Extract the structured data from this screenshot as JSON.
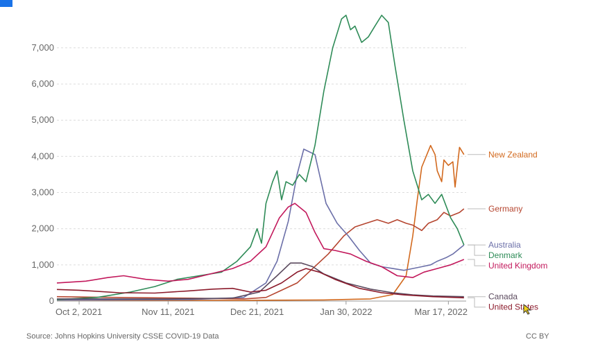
{
  "footer": {
    "source": "Source: Johns Hopkins University CSSE COVID-19 Data",
    "license": "CC BY"
  },
  "chart_data": {
    "type": "line",
    "title": "",
    "xlabel": "",
    "ylabel": "",
    "ylim": [
      0,
      7900
    ],
    "yticks": [
      0,
      1000,
      2000,
      3000,
      4000,
      5000,
      6000,
      7000
    ],
    "ytick_labels": [
      "0",
      "1,000",
      "2,000",
      "3,000",
      "4,000",
      "5,000",
      "6,000",
      "7,000"
    ],
    "x_domain": [
      "2021-09-22",
      "2022-03-25"
    ],
    "xticks": [
      "2021-10-02",
      "2021-11-11",
      "2021-12-21",
      "2022-01-30",
      "2022-03-17"
    ],
    "xtick_labels": [
      "Oct 2, 2021",
      "Nov 11, 2021",
      "Dec 21, 2021",
      "Jan 30, 2022",
      "Mar 17, 2022"
    ],
    "grid": "horizontal dashed",
    "legend": "right, end labels",
    "series": [
      {
        "name": "New Zealand",
        "color": "#d2691e",
        "label_value": 4050,
        "points": [
          [
            "2021-09-22",
            30
          ],
          [
            "2021-10-30",
            20
          ],
          [
            "2021-12-15",
            20
          ],
          [
            "2022-01-20",
            30
          ],
          [
            "2022-02-10",
            60
          ],
          [
            "2022-02-20",
            180
          ],
          [
            "2022-02-26",
            700
          ],
          [
            "2022-03-01",
            1800
          ],
          [
            "2022-03-03",
            2800
          ],
          [
            "2022-03-05",
            3700
          ],
          [
            "2022-03-08",
            4150
          ],
          [
            "2022-03-09",
            4300
          ],
          [
            "2022-03-11",
            4050
          ],
          [
            "2022-03-12",
            3600
          ],
          [
            "2022-03-14",
            3300
          ],
          [
            "2022-03-15",
            3900
          ],
          [
            "2022-03-17",
            3750
          ],
          [
            "2022-03-19",
            3850
          ],
          [
            "2022-03-20",
            3150
          ],
          [
            "2022-03-22",
            4250
          ],
          [
            "2022-03-24",
            4050
          ]
        ]
      },
      {
        "name": "Germany",
        "color": "#b5452f",
        "label_value": 2550,
        "points": [
          [
            "2021-09-22",
            120
          ],
          [
            "2021-10-20",
            100
          ],
          [
            "2021-11-20",
            80
          ],
          [
            "2021-12-15",
            60
          ],
          [
            "2021-12-25",
            100
          ],
          [
            "2022-01-01",
            300
          ],
          [
            "2022-01-08",
            500
          ],
          [
            "2022-01-15",
            900
          ],
          [
            "2022-01-22",
            1300
          ],
          [
            "2022-01-29",
            1800
          ],
          [
            "2022-02-03",
            2050
          ],
          [
            "2022-02-08",
            2150
          ],
          [
            "2022-02-13",
            2250
          ],
          [
            "2022-02-18",
            2150
          ],
          [
            "2022-02-22",
            2250
          ],
          [
            "2022-02-26",
            2150
          ],
          [
            "2022-03-01",
            2100
          ],
          [
            "2022-03-05",
            1950
          ],
          [
            "2022-03-08",
            2150
          ],
          [
            "2022-03-12",
            2250
          ],
          [
            "2022-03-15",
            2450
          ],
          [
            "2022-03-18",
            2350
          ],
          [
            "2022-03-22",
            2450
          ],
          [
            "2022-03-24",
            2550
          ]
        ]
      },
      {
        "name": "Australia",
        "color": "#6b6fa8",
        "label_value": 1550,
        "points": [
          [
            "2021-09-22",
            30
          ],
          [
            "2021-11-20",
            40
          ],
          [
            "2021-12-15",
            100
          ],
          [
            "2021-12-25",
            500
          ],
          [
            "2021-12-30",
            1100
          ],
          [
            "2022-01-04",
            2200
          ],
          [
            "2022-01-08",
            3500
          ],
          [
            "2022-01-11",
            4200
          ],
          [
            "2022-01-16",
            4050
          ],
          [
            "2022-01-21",
            2700
          ],
          [
            "2022-01-26",
            2150
          ],
          [
            "2022-01-31",
            1800
          ],
          [
            "2022-02-05",
            1400
          ],
          [
            "2022-02-10",
            1050
          ],
          [
            "2022-02-15",
            950
          ],
          [
            "2022-02-20",
            900
          ],
          [
            "2022-02-25",
            850
          ],
          [
            "2022-03-01",
            900
          ],
          [
            "2022-03-05",
            950
          ],
          [
            "2022-03-09",
            1000
          ],
          [
            "2022-03-12",
            1100
          ],
          [
            "2022-03-16",
            1200
          ],
          [
            "2022-03-19",
            1300
          ],
          [
            "2022-03-22",
            1450
          ],
          [
            "2022-03-24",
            1550
          ]
        ]
      },
      {
        "name": "Denmark",
        "color": "#2e8b57",
        "label_value": 1550,
        "points": [
          [
            "2021-09-22",
            40
          ],
          [
            "2021-10-10",
            100
          ],
          [
            "2021-10-25",
            250
          ],
          [
            "2021-11-05",
            400
          ],
          [
            "2021-11-15",
            600
          ],
          [
            "2021-11-25",
            700
          ],
          [
            "2021-12-05",
            800
          ],
          [
            "2021-12-12",
            1100
          ],
          [
            "2021-12-18",
            1500
          ],
          [
            "2021-12-21",
            2000
          ],
          [
            "2021-12-23",
            1600
          ],
          [
            "2021-12-25",
            2700
          ],
          [
            "2021-12-28",
            3300
          ],
          [
            "2021-12-30",
            3600
          ],
          [
            "2022-01-01",
            2800
          ],
          [
            "2022-01-03",
            3300
          ],
          [
            "2022-01-06",
            3200
          ],
          [
            "2022-01-09",
            3500
          ],
          [
            "2022-01-12",
            3300
          ],
          [
            "2022-01-16",
            4300
          ],
          [
            "2022-01-20",
            5800
          ],
          [
            "2022-01-24",
            7000
          ],
          [
            "2022-01-28",
            7800
          ],
          [
            "2022-01-30",
            7900
          ],
          [
            "2022-02-01",
            7500
          ],
          [
            "2022-02-03",
            7600
          ],
          [
            "2022-02-06",
            7150
          ],
          [
            "2022-02-09",
            7300
          ],
          [
            "2022-02-12",
            7600
          ],
          [
            "2022-02-15",
            7900
          ],
          [
            "2022-02-18",
            7700
          ],
          [
            "2022-02-21",
            6500
          ],
          [
            "2022-02-25",
            5000
          ],
          [
            "2022-03-01",
            3600
          ],
          [
            "2022-03-05",
            2800
          ],
          [
            "2022-03-08",
            2950
          ],
          [
            "2022-03-11",
            2700
          ],
          [
            "2022-03-14",
            2950
          ],
          [
            "2022-03-18",
            2300
          ],
          [
            "2022-03-21",
            2000
          ],
          [
            "2022-03-24",
            1550
          ]
        ]
      },
      {
        "name": "United Kingdom",
        "color": "#c2185b",
        "label_value": 1150,
        "points": [
          [
            "2021-09-22",
            500
          ],
          [
            "2021-10-05",
            550
          ],
          [
            "2021-10-15",
            650
          ],
          [
            "2021-10-22",
            700
          ],
          [
            "2021-11-01",
            600
          ],
          [
            "2021-11-11",
            550
          ],
          [
            "2021-11-20",
            600
          ],
          [
            "2021-11-30",
            750
          ],
          [
            "2021-12-10",
            900
          ],
          [
            "2021-12-18",
            1100
          ],
          [
            "2021-12-25",
            1500
          ],
          [
            "2021-12-31",
            2300
          ],
          [
            "2022-01-04",
            2600
          ],
          [
            "2022-01-07",
            2700
          ],
          [
            "2022-01-12",
            2450
          ],
          [
            "2022-01-16",
            1900
          ],
          [
            "2022-01-20",
            1450
          ],
          [
            "2022-01-25",
            1400
          ],
          [
            "2022-02-01",
            1300
          ],
          [
            "2022-02-08",
            1100
          ],
          [
            "2022-02-15",
            950
          ],
          [
            "2022-02-22",
            700
          ],
          [
            "2022-03-01",
            650
          ],
          [
            "2022-03-06",
            800
          ],
          [
            "2022-03-12",
            900
          ],
          [
            "2022-03-18",
            1000
          ],
          [
            "2022-03-22",
            1100
          ],
          [
            "2022-03-24",
            1150
          ]
        ]
      },
      {
        "name": "Canada",
        "color": "#5b4a5e",
        "label_value": 120,
        "points": [
          [
            "2021-09-22",
            60
          ],
          [
            "2021-11-11",
            60
          ],
          [
            "2021-12-10",
            80
          ],
          [
            "2021-12-22",
            250
          ],
          [
            "2021-12-30",
            700
          ],
          [
            "2022-01-05",
            1050
          ],
          [
            "2022-01-10",
            1050
          ],
          [
            "2022-01-15",
            950
          ],
          [
            "2022-01-20",
            750
          ],
          [
            "2022-01-30",
            500
          ],
          [
            "2022-02-10",
            330
          ],
          [
            "2022-02-20",
            230
          ],
          [
            "2022-03-01",
            170
          ],
          [
            "2022-03-10",
            140
          ],
          [
            "2022-03-24",
            120
          ]
        ]
      },
      {
        "name": "United States",
        "color": "#8b1a2b",
        "label_value": 90,
        "points": [
          [
            "2021-09-22",
            320
          ],
          [
            "2021-10-02",
            300
          ],
          [
            "2021-10-20",
            230
          ],
          [
            "2021-11-05",
            220
          ],
          [
            "2021-11-20",
            280
          ],
          [
            "2021-12-01",
            330
          ],
          [
            "2021-12-10",
            350
          ],
          [
            "2021-12-18",
            250
          ],
          [
            "2021-12-25",
            300
          ],
          [
            "2022-01-01",
            500
          ],
          [
            "2022-01-08",
            800
          ],
          [
            "2022-01-12",
            900
          ],
          [
            "2022-01-18",
            800
          ],
          [
            "2022-01-25",
            600
          ],
          [
            "2022-02-05",
            350
          ],
          [
            "2022-02-15",
            230
          ],
          [
            "2022-02-25",
            170
          ],
          [
            "2022-03-10",
            120
          ],
          [
            "2022-03-24",
            90
          ]
        ]
      }
    ]
  }
}
